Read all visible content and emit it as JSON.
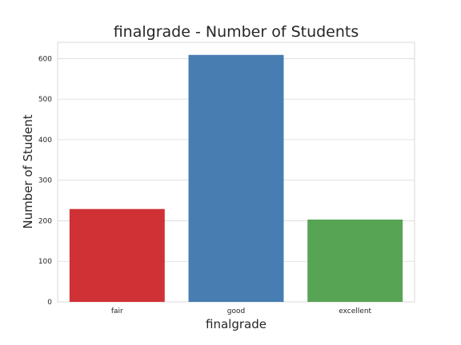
{
  "chart_data": {
    "type": "bar",
    "title": "finalgrade - Number of Students",
    "xlabel": "finalgrade",
    "ylabel": "Number of Student",
    "categories": [
      "fair",
      "good",
      "excellent"
    ],
    "values": [
      229,
      609,
      203
    ],
    "colors": [
      "#d03135",
      "#477db0",
      "#57a455"
    ],
    "ylim": [
      0,
      640
    ],
    "yticks": [
      0,
      100,
      200,
      300,
      400,
      500,
      600
    ],
    "grid": true,
    "legend": "none"
  }
}
